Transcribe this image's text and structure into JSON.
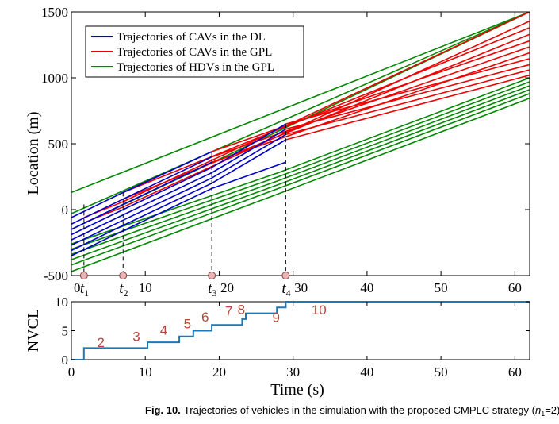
{
  "caption": {
    "prefix": "Fig. 10.",
    "text": "Trajectories of vehicles in the simulation with the proposed CMPLC strategy (",
    "n_var": "n",
    "n_sub": "1",
    "n_eq": "=2)"
  },
  "chart_data": [
    {
      "type": "line",
      "id": "trajectories",
      "xlim": [
        0,
        62
      ],
      "ylim": [
        -500,
        1500
      ],
      "xlabel": "",
      "ylabel": "Location (m)",
      "xticks": [
        {
          "value": 0,
          "label": "0"
        },
        {
          "value": 10,
          "label": "10"
        },
        {
          "value": 20,
          "label": "20"
        },
        {
          "value": 30,
          "label": "30"
        },
        {
          "value": 40,
          "label": "40"
        },
        {
          "value": 50,
          "label": "50"
        },
        {
          "value": 60,
          "label": "60"
        }
      ],
      "yticks": [
        {
          "value": -500,
          "label": "-500"
        },
        {
          "value": 0,
          "label": "0"
        },
        {
          "value": 500,
          "label": "500"
        },
        {
          "value": 1000,
          "label": "1000"
        },
        {
          "value": 1500,
          "label": "1500"
        }
      ],
      "legend": [
        {
          "label": "Trajectories of CAVs in the DL",
          "color": "#0000cc"
        },
        {
          "label": "Trajectories of CAVs in the GPL",
          "color": "#ee0000"
        },
        {
          "label": "Trajectories of HDVs in the GPL",
          "color": "#008800"
        }
      ],
      "time_markers": [
        {
          "t": 1.7,
          "name": "t",
          "sub": "1",
          "y_top": 40
        },
        {
          "t": 7.0,
          "name": "t",
          "sub": "2",
          "y_top": 130
        },
        {
          "t": 19.0,
          "name": "t",
          "sub": "3",
          "y_top": 440
        },
        {
          "t": 29.0,
          "name": "t",
          "sub": "4",
          "y_top": 650
        }
      ],
      "series_green_upper": [
        {
          "x": [
            0,
            62
          ],
          "y": [
            130,
            1500
          ]
        },
        {
          "x": [
            0,
            62
          ],
          "y": [
            -30,
            1500
          ]
        },
        {
          "x": [
            0,
            62
          ],
          "y": [
            -150,
            1500
          ]
        }
      ],
      "series_green_lower": [
        {
          "x": [
            0,
            28,
            62
          ],
          "y": [
            -260,
            280,
            1000
          ]
        },
        {
          "x": [
            0,
            28,
            62
          ],
          "y": [
            -300,
            250,
            970
          ]
        },
        {
          "x": [
            0,
            28,
            62
          ],
          "y": [
            -340,
            220,
            940
          ]
        },
        {
          "x": [
            0,
            28,
            62
          ],
          "y": [
            -380,
            190,
            910
          ]
        },
        {
          "x": [
            0,
            28,
            62
          ],
          "y": [
            -420,
            160,
            880
          ]
        },
        {
          "x": [
            0,
            28,
            62
          ],
          "y": [
            -470,
            120,
            845
          ]
        }
      ],
      "series_blue": [
        {
          "x": [
            0,
            7,
            19
          ],
          "y": [
            -60,
            130,
            440
          ]
        },
        {
          "x": [
            0,
            7,
            19
          ],
          "y": [
            -110,
            80,
            400
          ]
        },
        {
          "x": [
            0,
            7,
            19
          ],
          "y": [
            -150,
            40,
            360
          ]
        },
        {
          "x": [
            0,
            7,
            19,
            29
          ],
          "y": [
            -190,
            0,
            320,
            650
          ]
        },
        {
          "x": [
            0,
            7,
            19,
            29
          ],
          "y": [
            -230,
            -40,
            280,
            610
          ]
        },
        {
          "x": [
            0,
            7,
            19,
            29
          ],
          "y": [
            -270,
            -80,
            240,
            570
          ]
        },
        {
          "x": [
            0,
            7,
            19,
            29
          ],
          "y": [
            -310,
            -120,
            200,
            530
          ]
        },
        {
          "x": [
            0,
            7,
            19,
            29
          ],
          "y": [
            -350,
            -160,
            160,
            360
          ]
        }
      ],
      "series_red": [
        {
          "x": [
            1.7,
            7,
            62
          ],
          "y": [
            -60,
            60,
            1500
          ]
        },
        {
          "x": [
            1.7,
            7,
            62
          ],
          "y": [
            -100,
            20,
            1430
          ]
        },
        {
          "x": [
            7,
            62
          ],
          "y": [
            130,
            1380
          ]
        },
        {
          "x": [
            7,
            62
          ],
          "y": [
            80,
            1330
          ]
        },
        {
          "x": [
            19,
            62
          ],
          "y": [
            440,
            1280
          ]
        },
        {
          "x": [
            19,
            62
          ],
          "y": [
            400,
            1235
          ]
        },
        {
          "x": [
            19,
            62
          ],
          "y": [
            360,
            1190
          ]
        },
        {
          "x": [
            29,
            62
          ],
          "y": [
            650,
            1145
          ]
        },
        {
          "x": [
            29,
            62
          ],
          "y": [
            610,
            1100
          ]
        },
        {
          "x": [
            29,
            62
          ],
          "y": [
            570,
            1060
          ]
        },
        {
          "x": [
            29,
            62
          ],
          "y": [
            530,
            1020
          ]
        }
      ]
    },
    {
      "type": "line",
      "id": "nvcl",
      "step": true,
      "xlim": [
        0,
        62
      ],
      "ylim": [
        0,
        10
      ],
      "xlabel": "Time (s)",
      "ylabel": "NVCL",
      "xticks": [
        {
          "value": 0,
          "label": "0"
        },
        {
          "value": 10,
          "label": "10"
        },
        {
          "value": 20,
          "label": "20"
        },
        {
          "value": 30,
          "label": "30"
        },
        {
          "value": 40,
          "label": "40"
        },
        {
          "value": 50,
          "label": "50"
        },
        {
          "value": 60,
          "label": "60"
        }
      ],
      "yticks": [
        {
          "value": 0,
          "label": "0"
        },
        {
          "value": 5,
          "label": "5"
        },
        {
          "value": 10,
          "label": "10"
        }
      ],
      "color": "#1f77b4",
      "x": [
        0,
        1.7,
        7.0,
        10.3,
        14.6,
        16.5,
        19.0,
        23.1,
        23.6,
        27.8,
        29.0,
        62
      ],
      "y": [
        0,
        2,
        2,
        3,
        4,
        5,
        6,
        7,
        8,
        9,
        10,
        10
      ],
      "annotations": [
        {
          "text": "2",
          "x": 4.0,
          "y": 2.2
        },
        {
          "text": "3",
          "x": 8.8,
          "y": 3.2
        },
        {
          "text": "4",
          "x": 12.5,
          "y": 4.3
        },
        {
          "text": "5",
          "x": 15.7,
          "y": 5.4
        },
        {
          "text": "6",
          "x": 18.1,
          "y": 6.6
        },
        {
          "text": "7",
          "x": 21.3,
          "y": 7.6
        },
        {
          "text": "8",
          "x": 23.0,
          "y": 7.9
        },
        {
          "text": "9",
          "x": 27.7,
          "y": 6.5
        },
        {
          "text": "10",
          "x": 33.5,
          "y": 7.8
        }
      ]
    }
  ]
}
